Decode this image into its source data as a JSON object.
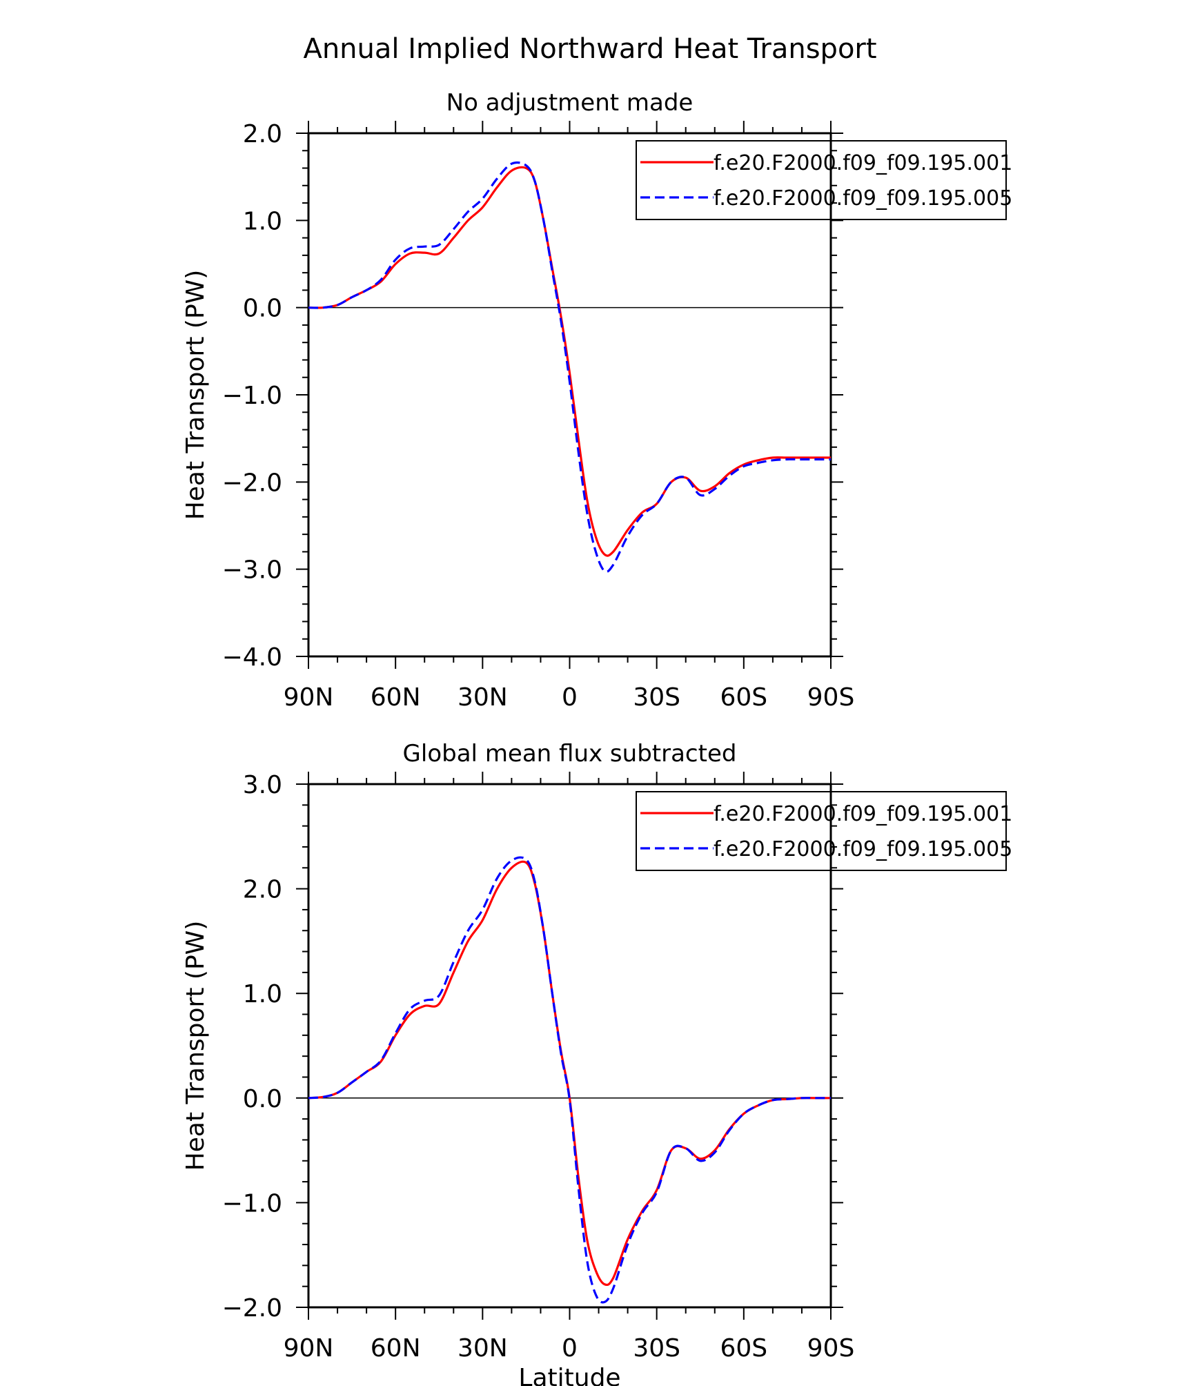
{
  "figure": {
    "title": "Annual Implied Northward Heat Transport"
  },
  "chart_data": [
    {
      "type": "line",
      "title": "No adjustment made",
      "xlabel": "",
      "ylabel": "Heat Transport (PW)",
      "x_tick_labels": [
        "90N",
        "60N",
        "30N",
        "0",
        "30S",
        "60S",
        "90S"
      ],
      "x_tick_values": [
        90,
        60,
        30,
        0,
        -30,
        -60,
        -90
      ],
      "xlim": [
        90,
        -90
      ],
      "ylim": [
        -4.0,
        2.0
      ],
      "y_ticks": [
        -4.0,
        -3.0,
        -2.0,
        -1.0,
        0.0,
        1.0,
        2.0
      ],
      "y_tick_labels": [
        "−4.0",
        "−3.0",
        "−2.0",
        "−1.0",
        "0.0",
        "1.0",
        "2.0"
      ],
      "reference_line": 0.0,
      "legend": "top-right",
      "x": [
        90,
        85,
        80,
        75,
        70,
        65,
        60,
        55,
        50,
        45,
        40,
        35,
        30,
        25,
        20,
        15,
        12,
        9,
        6,
        3,
        0,
        -3,
        -6,
        -9,
        -12,
        -15,
        -20,
        -25,
        -30,
        -35,
        -40,
        -45,
        -50,
        -55,
        -60,
        -65,
        -70,
        -75,
        -80,
        -85,
        -90
      ],
      "series": [
        {
          "name": "f.e20.F2000.f09_f09.195.001",
          "color": "#ff0000",
          "dash": "solid",
          "values": [
            0.0,
            0.0,
            0.03,
            0.12,
            0.2,
            0.3,
            0.5,
            0.62,
            0.63,
            0.62,
            0.8,
            1.0,
            1.15,
            1.38,
            1.57,
            1.6,
            1.45,
            1.0,
            0.45,
            -0.1,
            -0.75,
            -1.5,
            -2.2,
            -2.63,
            -2.83,
            -2.8,
            -2.55,
            -2.35,
            -2.25,
            -2.0,
            -1.95,
            -2.1,
            -2.05,
            -1.9,
            -1.8,
            -1.75,
            -1.72,
            -1.72,
            -1.72,
            -1.72,
            -1.72
          ]
        },
        {
          "name": "f.e20.F2000.f09_f09.195.005",
          "color": "#0000ff",
          "dash": "dashed",
          "values": [
            0.0,
            0.0,
            0.03,
            0.12,
            0.2,
            0.32,
            0.55,
            0.68,
            0.7,
            0.72,
            0.9,
            1.1,
            1.25,
            1.48,
            1.65,
            1.63,
            1.45,
            1.0,
            0.42,
            -0.15,
            -0.85,
            -1.65,
            -2.35,
            -2.8,
            -3.02,
            -2.95,
            -2.62,
            -2.38,
            -2.25,
            -2.0,
            -1.95,
            -2.15,
            -2.08,
            -1.93,
            -1.82,
            -1.78,
            -1.75,
            -1.74,
            -1.74,
            -1.74,
            -1.74
          ]
        }
      ]
    },
    {
      "type": "line",
      "title": "Global mean flux subtracted",
      "xlabel": "Latitude",
      "ylabel": "Heat Transport (PW)",
      "x_tick_labels": [
        "90N",
        "60N",
        "30N",
        "0",
        "30S",
        "60S",
        "90S"
      ],
      "x_tick_values": [
        90,
        60,
        30,
        0,
        -30,
        -60,
        -90
      ],
      "xlim": [
        90,
        -90
      ],
      "ylim": [
        -2.0,
        3.0
      ],
      "y_ticks": [
        -2.0,
        -1.0,
        0.0,
        1.0,
        2.0,
        3.0
      ],
      "y_tick_labels": [
        "−2.0",
        "−1.0",
        "0.0",
        "1.0",
        "2.0",
        "3.0"
      ],
      "reference_line": 0.0,
      "legend": "top-right",
      "x": [
        90,
        85,
        80,
        75,
        70,
        65,
        60,
        55,
        50,
        45,
        40,
        35,
        30,
        25,
        20,
        15,
        12,
        9,
        6,
        3,
        0,
        -3,
        -6,
        -9,
        -12,
        -15,
        -20,
        -25,
        -30,
        -35,
        -40,
        -45,
        -50,
        -55,
        -60,
        -65,
        -70,
        -75,
        -80,
        -85,
        -90
      ],
      "series": [
        {
          "name": "f.e20.F2000.f09_f09.195.001",
          "color": "#ff0000",
          "dash": "solid",
          "values": [
            0.0,
            0.01,
            0.05,
            0.15,
            0.25,
            0.35,
            0.6,
            0.8,
            0.88,
            0.9,
            1.2,
            1.5,
            1.7,
            2.0,
            2.2,
            2.25,
            2.05,
            1.6,
            1.0,
            0.45,
            0.0,
            -0.75,
            -1.35,
            -1.65,
            -1.78,
            -1.72,
            -1.35,
            -1.08,
            -0.88,
            -0.5,
            -0.48,
            -0.58,
            -0.5,
            -0.3,
            -0.15,
            -0.07,
            -0.02,
            -0.01,
            0.0,
            0.0,
            0.0
          ]
        },
        {
          "name": "f.e20.F2000.f09_f09.195.005",
          "color": "#0000ff",
          "dash": "dashed",
          "values": [
            0.0,
            0.01,
            0.05,
            0.15,
            0.25,
            0.36,
            0.62,
            0.85,
            0.93,
            0.98,
            1.3,
            1.6,
            1.8,
            2.1,
            2.27,
            2.28,
            2.07,
            1.6,
            1.0,
            0.43,
            -0.02,
            -0.85,
            -1.55,
            -1.88,
            -1.95,
            -1.82,
            -1.4,
            -1.1,
            -0.9,
            -0.5,
            -0.48,
            -0.6,
            -0.52,
            -0.31,
            -0.15,
            -0.07,
            -0.02,
            -0.01,
            0.0,
            0.0,
            0.0
          ]
        }
      ]
    }
  ]
}
